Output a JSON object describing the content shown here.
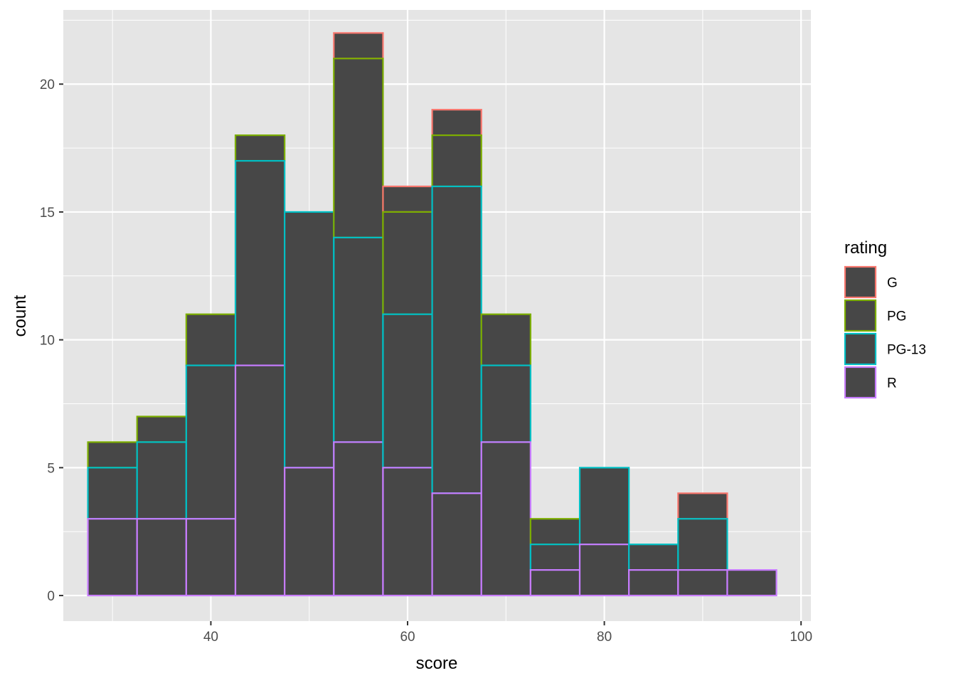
{
  "chart_data": {
    "type": "bar",
    "stacked": true,
    "xlabel": "score",
    "ylabel": "count",
    "xlim": [
      25,
      101
    ],
    "ylim": [
      -1,
      22.9
    ],
    "x_ticks": [
      40,
      60,
      80,
      100
    ],
    "y_ticks": [
      0,
      5,
      10,
      15,
      20
    ],
    "grid": true,
    "bin_width": 5,
    "bins": [
      30,
      35,
      40,
      45,
      50,
      55,
      60,
      65,
      70,
      75,
      80,
      85,
      90,
      95
    ],
    "series": [
      {
        "name": "R",
        "color": "#c77cff",
        "values": [
          3,
          3,
          3,
          9,
          5,
          6,
          5,
          4,
          6,
          1,
          2,
          1,
          1,
          1
        ]
      },
      {
        "name": "PG-13",
        "color": "#00bfc4",
        "values": [
          2,
          3,
          6,
          8,
          10,
          8,
          6,
          12,
          3,
          1,
          3,
          1,
          2,
          0
        ]
      },
      {
        "name": "PG",
        "color": "#7cae00",
        "values": [
          1,
          1,
          2,
          1,
          0,
          7,
          4,
          2,
          2,
          1,
          0,
          0,
          0,
          0
        ]
      },
      {
        "name": "G",
        "color": "#f8766d",
        "values": [
          0,
          0,
          0,
          0,
          0,
          1,
          1,
          1,
          0,
          0,
          0,
          0,
          1,
          0
        ]
      }
    ],
    "bar_fill": "#474747",
    "panel_background": "#e5e5e5",
    "grid_color": "#ffffff",
    "legend": {
      "title": "rating",
      "placement": "right",
      "entries": [
        {
          "label": "G",
          "color": "#f8766d"
        },
        {
          "label": "PG",
          "color": "#7cae00"
        },
        {
          "label": "PG-13",
          "color": "#00bfc4"
        },
        {
          "label": "R",
          "color": "#c77cff"
        }
      ]
    }
  }
}
